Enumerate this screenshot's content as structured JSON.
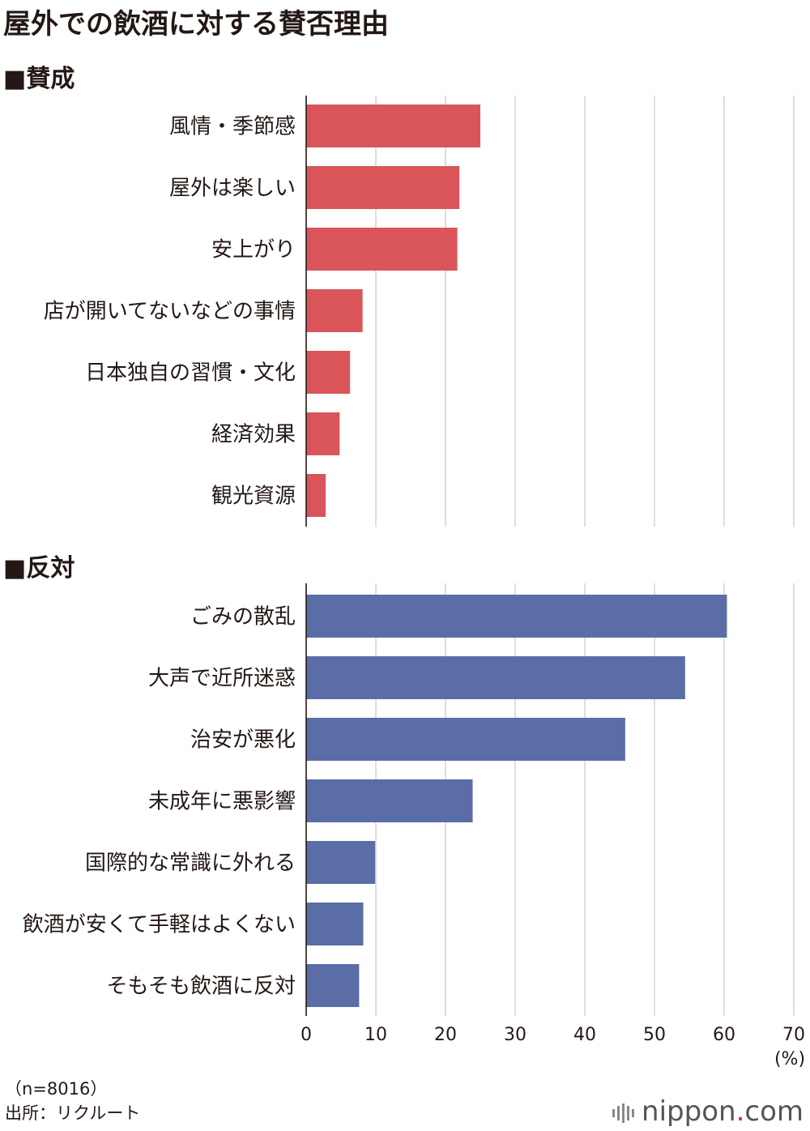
{
  "title": "屋外での飲酒に対する賛否理由",
  "sections": [
    {
      "label": "■賛成",
      "color": "#d9555a"
    },
    {
      "label": "■反対",
      "color": "#5a6da6"
    }
  ],
  "chart_data": [
    {
      "type": "bar",
      "orientation": "horizontal",
      "title": "■賛成",
      "categories": [
        "風情・季節感",
        "屋外は楽しい",
        "安上がり",
        "店が開いてないなどの事情",
        "日本独自の習慣・文化",
        "経済効果",
        "観光資源"
      ],
      "values": [
        25.0,
        22.0,
        21.7,
        8.1,
        6.3,
        4.8,
        2.8
      ],
      "xlim": [
        0,
        70
      ],
      "grid": true
    },
    {
      "type": "bar",
      "orientation": "horizontal",
      "title": "■反対",
      "categories": [
        "ごみの散乱",
        "大声で近所迷惑",
        "治安が悪化",
        "未成年に悪影響",
        "国際的な常識に外れる",
        "飲酒が安くて手軽はよくない",
        "そもそも飲酒に反対"
      ],
      "values": [
        60.4,
        54.4,
        45.8,
        23.9,
        9.9,
        8.2,
        7.6
      ],
      "xlim": [
        0,
        70
      ],
      "xticks": [
        0,
        10,
        20,
        30,
        40,
        50,
        60,
        70
      ],
      "xlabel": "(%)",
      "grid": true
    }
  ],
  "footnotes": {
    "n": "（n=8016）",
    "source": "出所：リクルート"
  },
  "logo": {
    "name": "nippon",
    "dot": ".",
    "tld": "com"
  }
}
